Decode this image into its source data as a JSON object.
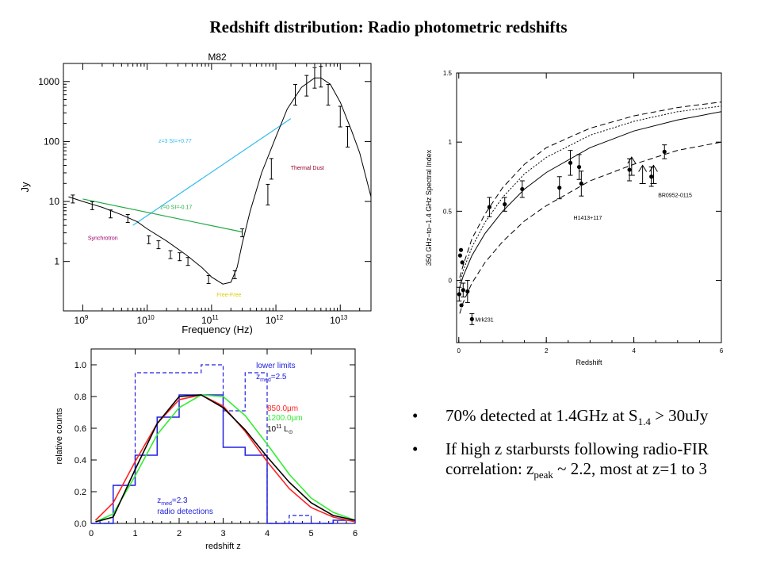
{
  "slide": {
    "title": "Redshift distribution: Radio photometric redshifts",
    "bullets": [
      {
        "parts": [
          "70% detected at 1.4GHz at S",
          "1.4",
          " > 30uJy"
        ]
      },
      {
        "parts": [
          " If high z starbursts following radio-FIR correlation: z",
          "peak",
          " ~ 2.2, most at z=1 to 3"
        ]
      }
    ],
    "bullet_marker": "•"
  },
  "chart_data": [
    {
      "type": "line",
      "title": "M82",
      "xlabel": "Frequency (Hz)",
      "ylabel": "Jy",
      "xscale": "log",
      "yscale": "log",
      "xlim": [
        500000000.0,
        30000000000000.0
      ],
      "ylim": [
        0.15,
        2000
      ],
      "x_ticks": [
        {
          "v": 1000000000.0,
          "b": "10",
          "e": "9"
        },
        {
          "v": 10000000000.0,
          "b": "10",
          "e": "10"
        },
        {
          "v": 100000000000.0,
          "b": "10",
          "e": "11"
        },
        {
          "v": 1000000000000.0,
          "b": "10",
          "e": "12"
        },
        {
          "v": 10000000000000.0,
          "b": "10",
          "e": "13"
        }
      ],
      "y_ticks": [
        {
          "v": 1,
          "label": "1"
        },
        {
          "v": 10,
          "label": "10"
        },
        {
          "v": 100,
          "label": "100"
        },
        {
          "v": 1000,
          "label": "1000"
        }
      ],
      "sed_curve": {
        "x": [
          600000000.0,
          1000000000.0,
          2000000000.0,
          4000000000.0,
          7000000000.0,
          10000000000.0,
          20000000000.0,
          40000000000.0,
          70000000000.0,
          100000000000.0,
          150000000000.0,
          200000000000.0,
          250000000000.0,
          300000000000.0,
          400000000000.0,
          600000000000.0,
          1000000000000.0,
          1500000000000.0,
          2500000000000.0,
          4000000000000.0,
          5000000000000.0,
          7000000000000.0,
          10000000000000.0,
          15000000000000.0,
          20000000000000.0,
          30000000000000.0
        ],
        "y": [
          12,
          10,
          8,
          6,
          4.6,
          3.5,
          2.2,
          1.3,
          0.8,
          0.55,
          0.42,
          0.45,
          0.8,
          2,
          7,
          30,
          120,
          350,
          800,
          1150,
          1150,
          900,
          450,
          150,
          65,
          12
        ]
      },
      "data_points": {
        "x": [
          700000000.0,
          1400000000.0,
          2700000000.0,
          5000000000.0,
          10600000000.0,
          15000000000.0,
          23000000000.0,
          32000000000.0,
          43000000000.0,
          90000000000.0,
          230000000000.0,
          300000000000.0,
          750000000000.0,
          850000000000.0,
          2000000000000.0,
          3000000000000.0,
          4000000000000.0,
          5000000000000.0,
          6500000000000.0,
          10000000000000.0,
          13000000000000.0
        ],
        "y": [
          11,
          8.5,
          6.2,
          5.2,
          2.3,
          1.9,
          1.3,
          1.2,
          1.0,
          0.5,
          0.6,
          3,
          13,
          35,
          600,
          850,
          1150,
          1200,
          600,
          260,
          120
        ]
      },
      "lines": [
        {
          "name": "z=3 SI=+0.77",
          "color": "#33bbee",
          "x": [
            6000000000.0,
            1700000000000.0
          ],
          "y": [
            4,
            240
          ]
        },
        {
          "name": "z=0 SI=-0.17",
          "color": "#22aa44",
          "x": [
            1000000000.0,
            300000000000.0
          ],
          "y": [
            11,
            3.1
          ]
        }
      ],
      "annotations": [
        {
          "text": "Synchrotron",
          "color": "#990066"
        },
        {
          "text": "Thermal Dust",
          "color": "#990022"
        },
        {
          "text": "Free-Free",
          "color": "#ddcc00"
        }
      ],
      "grid": false
    },
    {
      "type": "scatter",
      "xlabel": "Redshift",
      "ylabel": "350 GHz−to−1.4 GHz Spectral Index",
      "xlim": [
        -0.05,
        6
      ],
      "ylim": [
        -0.45,
        1.5
      ],
      "x_ticks": [
        0,
        2,
        4,
        6
      ],
      "y_ticks": [
        {
          "v": 0,
          "label": "0"
        },
        {
          "v": 0.5,
          "label": "0.5"
        },
        {
          "v": 1,
          "label": "1"
        },
        {
          "v": 1.5,
          "label": "1.5"
        }
      ],
      "curves": [
        {
          "style": "solid",
          "z": [
            0.02,
            0.1,
            0.3,
            0.6,
            1,
            1.5,
            2,
            3,
            4,
            5,
            6
          ],
          "alpha": [
            -0.05,
            0.03,
            0.18,
            0.34,
            0.5,
            0.66,
            0.78,
            0.96,
            1.08,
            1.16,
            1.22
          ]
        },
        {
          "style": "dotted",
          "z": [
            0.02,
            0.1,
            0.3,
            0.6,
            1,
            1.5,
            2,
            3,
            4,
            5,
            6
          ],
          "alpha": [
            -0.02,
            0.07,
            0.24,
            0.42,
            0.6,
            0.77,
            0.89,
            1.05,
            1.15,
            1.22,
            1.26
          ]
        },
        {
          "style": "dashed",
          "z": [
            0.02,
            0.1,
            0.3,
            0.6,
            1,
            1.5,
            2,
            3,
            4,
            5,
            6
          ],
          "alpha": [
            0.02,
            0.11,
            0.3,
            0.48,
            0.67,
            0.84,
            0.96,
            1.1,
            1.19,
            1.25,
            1.29
          ]
        },
        {
          "style": "dashed",
          "z": [
            0.02,
            0.1,
            0.3,
            0.6,
            1,
            1.5,
            2,
            3,
            4,
            5,
            6
          ],
          "alpha": [
            -0.24,
            -0.16,
            -0.02,
            0.13,
            0.28,
            0.43,
            0.54,
            0.72,
            0.84,
            0.94,
            1.0
          ]
        }
      ],
      "points": {
        "z": [
          0.01,
          0.03,
          0.05,
          0.06,
          0.08,
          0.1,
          0.2,
          0.3,
          0.7,
          1.05,
          1.45,
          2.3,
          2.55,
          2.75,
          2.8,
          3.9,
          4.4,
          4.7
        ],
        "alpha": [
          -0.1,
          0.18,
          0.22,
          -0.18,
          0.13,
          -0.07,
          -0.08,
          -0.28,
          0.53,
          0.55,
          0.66,
          0.67,
          0.85,
          0.82,
          0.7,
          0.8,
          0.75,
          0.93
        ],
        "err": [
          0.05,
          0,
          0,
          0,
          0,
          0.05,
          0.08,
          0.04,
          0.07,
          0.05,
          0.06,
          0.08,
          0.09,
          0.09,
          0.09,
          0.08,
          0.07,
          0.05
        ]
      },
      "lower_limits": {
        "z": [
          3.95,
          4.2,
          4.45
        ],
        "alpha": [
          0.76,
          0.7,
          0.7
        ]
      },
      "labeled_points": [
        {
          "label": "Mrk231",
          "z": 0.3,
          "alpha": -0.28
        },
        {
          "label": "H1413+117",
          "z": 2.55,
          "alpha": 0.45
        },
        {
          "label": "BR0952-0115",
          "z": 4.5,
          "alpha": 0.62
        }
      ]
    },
    {
      "type": "line",
      "xlabel": "redshift z",
      "ylabel": "relative counts",
      "xlim": [
        0,
        6
      ],
      "ylim": [
        0,
        1.1
      ],
      "x_ticks": [
        0,
        1,
        2,
        3,
        4,
        5,
        6
      ],
      "y_ticks": [
        {
          "v": 0,
          "label": "0.0"
        },
        {
          "v": 0.2,
          "label": "0.2"
        },
        {
          "v": 0.4,
          "label": "0.4"
        },
        {
          "v": 0.6,
          "label": "0.6"
        },
        {
          "v": 0.8,
          "label": "0.8"
        },
        {
          "v": 1,
          "label": "1.0"
        }
      ],
      "hist_radio": {
        "edges": [
          0,
          0.5,
          1,
          1.5,
          2,
          2.5,
          3,
          3.5,
          4,
          4.5,
          5,
          5.5,
          6
        ],
        "values": [
          0,
          0.24,
          0.43,
          0.67,
          0.81,
          0.81,
          0.48,
          0.43,
          0,
          0,
          0,
          0.02
        ]
      },
      "hist_lower_limits": {
        "edges": [
          0,
          0.5,
          1,
          1.5,
          2,
          2.5,
          3,
          3.5,
          4,
          4.5,
          5,
          5.5,
          6
        ],
        "values": [
          0,
          0.24,
          0.95,
          0.95,
          0.95,
          1.0,
          0.71,
          0.95,
          0,
          0.05,
          0,
          0
        ]
      },
      "series": [
        {
          "name": "850.0μm",
          "color": "#ff2222",
          "x": [
            0.1,
            0.5,
            1,
            1.5,
            2,
            2.5,
            3,
            3.5,
            4,
            4.5,
            5,
            5.5,
            6
          ],
          "y": [
            0.02,
            0.13,
            0.39,
            0.63,
            0.78,
            0.81,
            0.74,
            0.58,
            0.39,
            0.22,
            0.1,
            0.04,
            0.01
          ]
        },
        {
          "name": "1200.0μm",
          "color": "#33ee33",
          "x": [
            0.1,
            0.5,
            1,
            1.5,
            2,
            2.5,
            3,
            3.5,
            4,
            4.5,
            5,
            5.5,
            6
          ],
          "y": [
            0.01,
            0.06,
            0.3,
            0.56,
            0.73,
            0.81,
            0.8,
            0.68,
            0.5,
            0.31,
            0.16,
            0.07,
            0.02
          ]
        },
        {
          "name": "10 L",
          "color": "#000000",
          "x": [
            0.1,
            0.5,
            1,
            1.5,
            2,
            2.5,
            3,
            3.5,
            4,
            4.5,
            5,
            5.5,
            6
          ],
          "y": [
            0.01,
            0.04,
            0.34,
            0.63,
            0.8,
            0.81,
            0.73,
            0.59,
            0.42,
            0.26,
            0.13,
            0.05,
            0.02
          ]
        }
      ],
      "legend": {
        "position": "top-right",
        "lower_limits_label": "lower limits",
        "zmed_lower": "2.5",
        "radio_label": "radio detections",
        "zmed_radio": "2.3",
        "lum_exp": "11",
        "sun_symbol": "⊙"
      }
    }
  ],
  "colors": {
    "axis": "#000000",
    "hist": "#2222dd",
    "cyan": "#33bbee",
    "green": "#22aa44"
  }
}
